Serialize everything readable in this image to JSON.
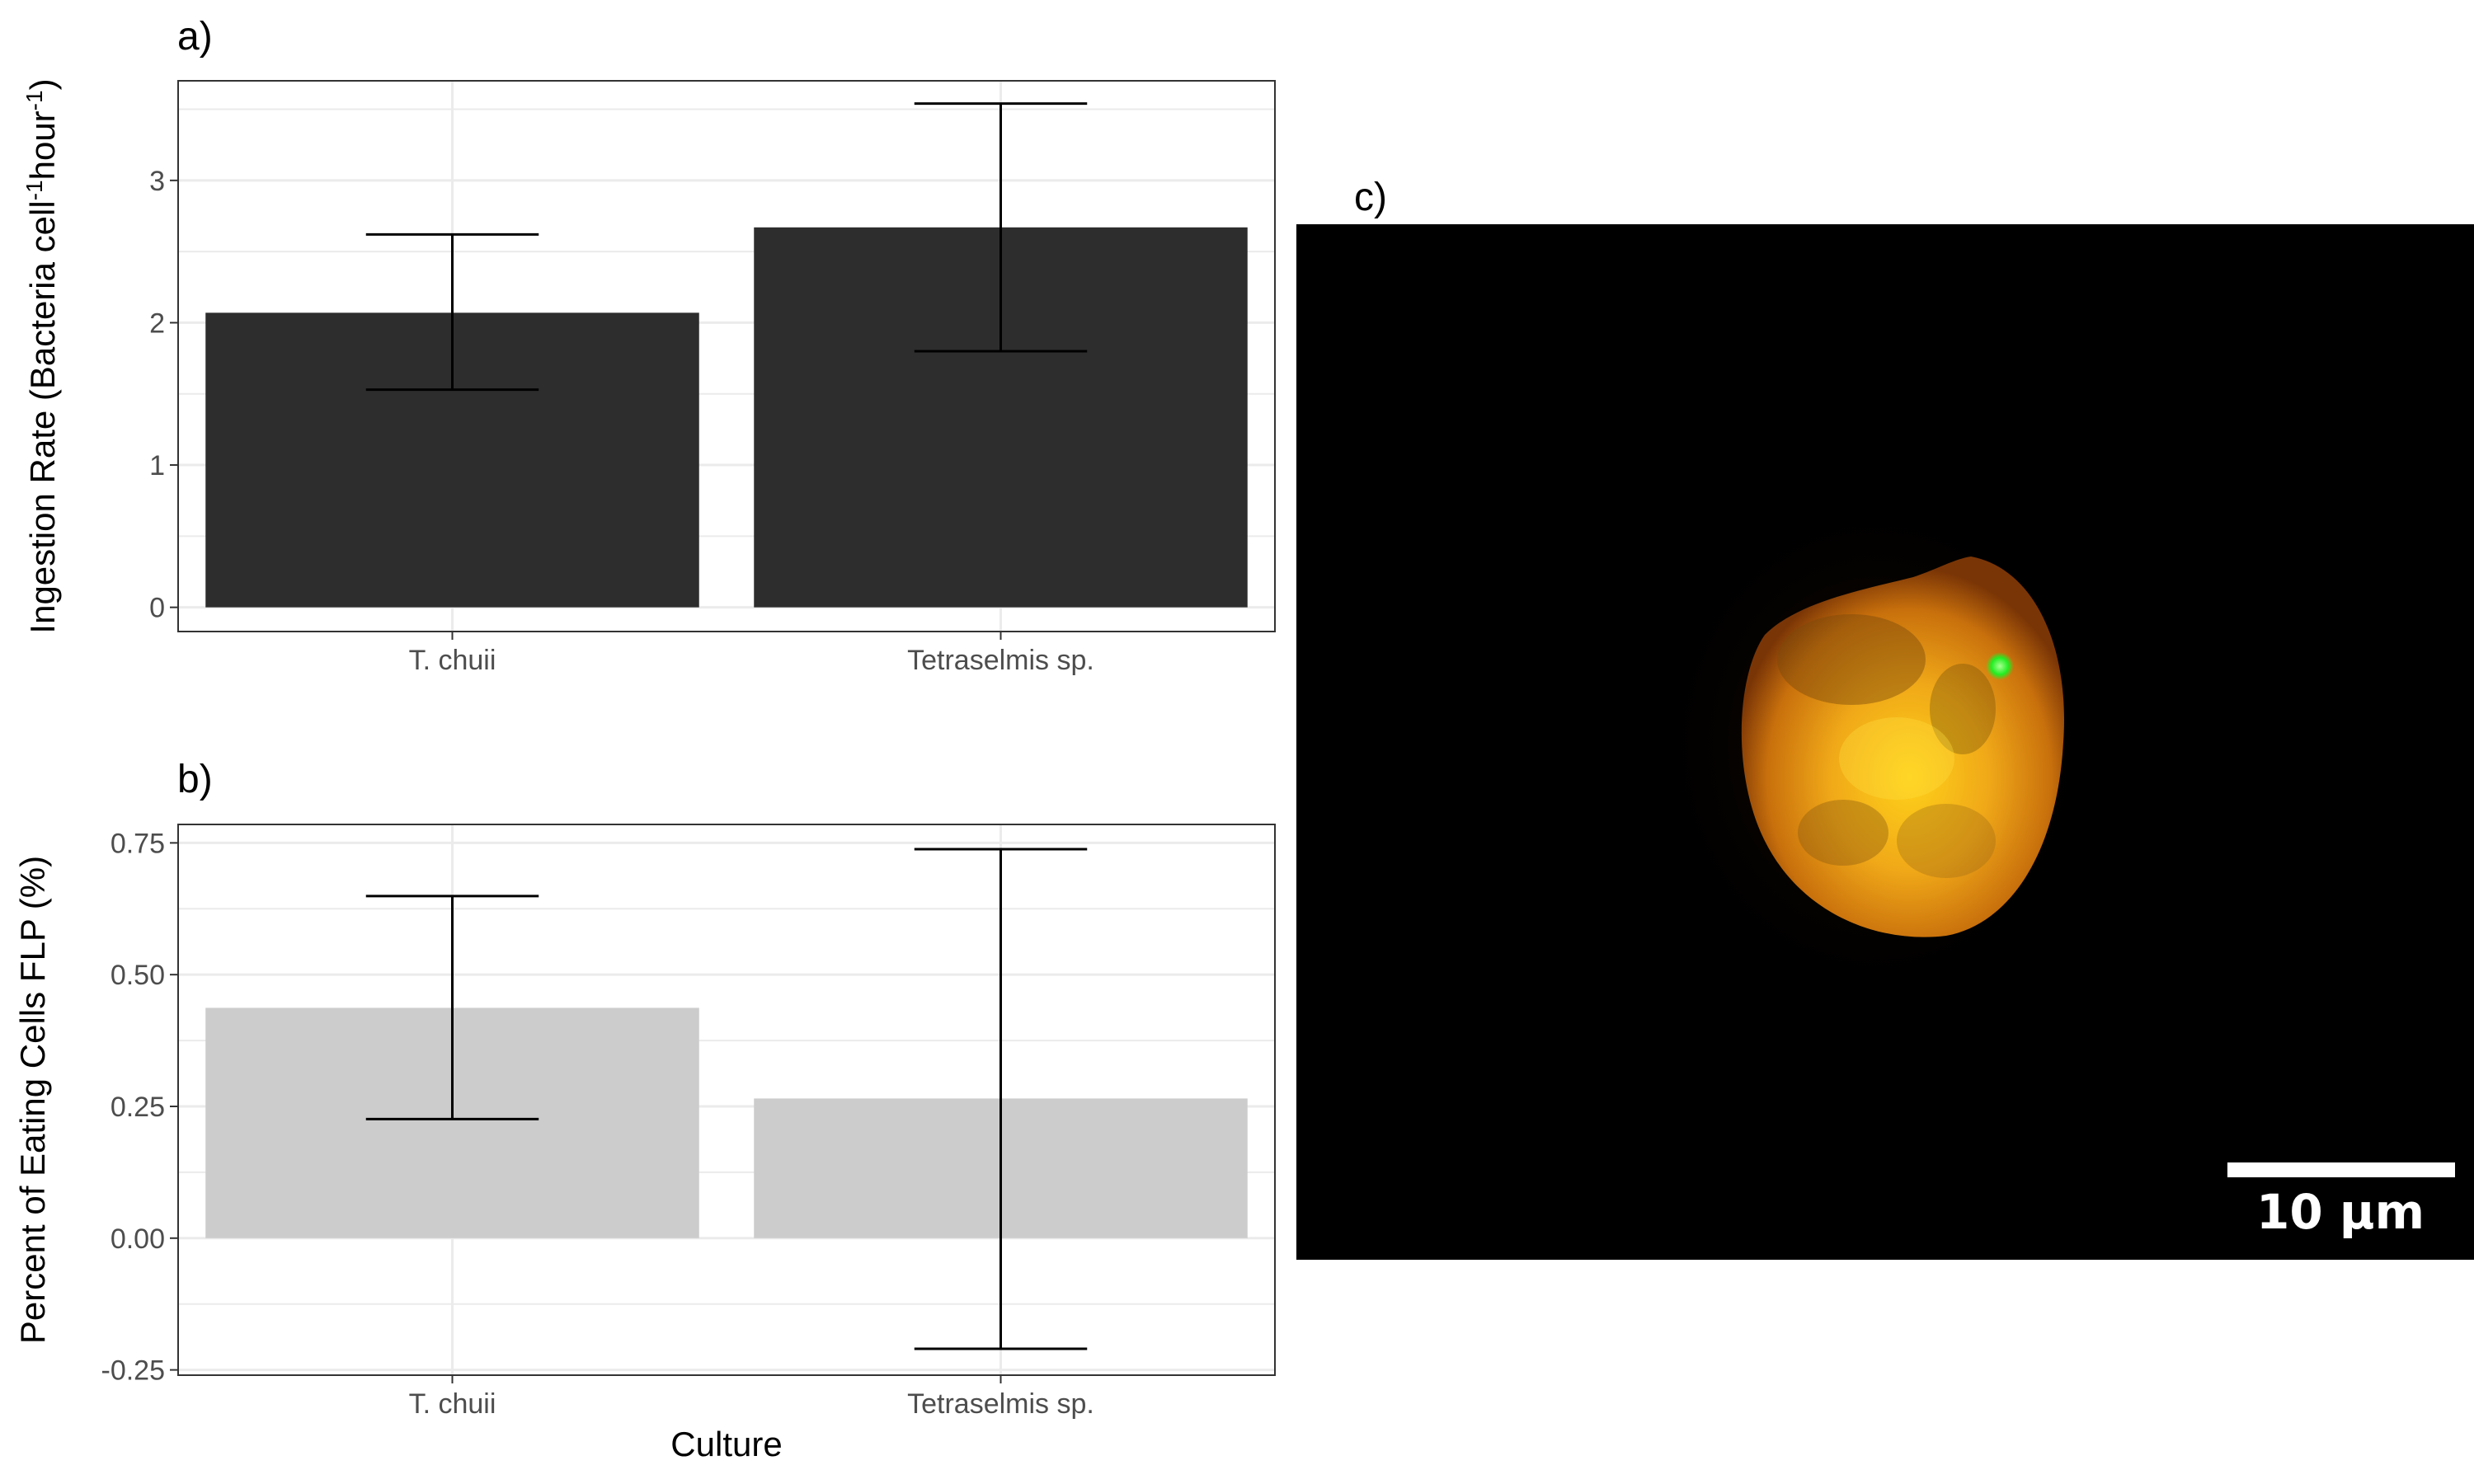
{
  "chart_data": [
    {
      "type": "bar",
      "panel_label": "a)",
      "categories": [
        "T. chuii",
        "Tetraselmis sp."
      ],
      "values": [
        2.07,
        2.67
      ],
      "error_low": [
        1.53,
        1.8
      ],
      "error_high": [
        2.62,
        3.54
      ],
      "bar_color": "#2d2d2d",
      "ylim": [
        -0.17,
        3.7
      ],
      "yticks": [
        0,
        1,
        2,
        3
      ],
      "ytick_labels": [
        "0",
        "1",
        "2",
        "3"
      ],
      "ylabel": "Ingestion Rate (Bacteria cell⁻¹hour⁻¹)",
      "xlabel": "",
      "grid": true
    },
    {
      "type": "bar",
      "panel_label": "b)",
      "categories": [
        "T. chuii",
        "Tetraselmis sp."
      ],
      "values": [
        0.437,
        0.265
      ],
      "error_low": [
        0.226,
        -0.21
      ],
      "error_high": [
        0.649,
        0.738
      ],
      "bar_color": "#cccccc",
      "ylim": [
        -0.26,
        0.785
      ],
      "yticks": [
        -0.25,
        0,
        0.25,
        0.5,
        0.75
      ],
      "ytick_labels": [
        "-0.25",
        "0.00",
        "0.25",
        "0.50",
        "0.75"
      ],
      "ylabel": "Percent of Eating Cells FLP (%)",
      "xlabel": "Culture",
      "grid": true
    }
  ],
  "image_panel": {
    "panel_label": "c)",
    "scale_bar_label": "10 μm"
  }
}
